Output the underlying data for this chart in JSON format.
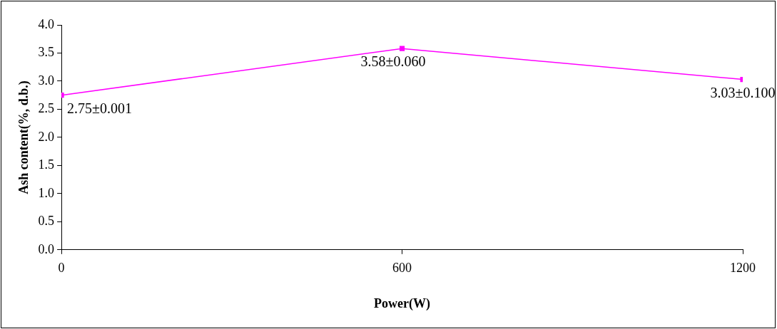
{
  "chart_data": {
    "type": "line",
    "xlabel": "Power(W)",
    "ylabel": "Ash content(%, d.b.)",
    "x": [
      0,
      600,
      1200
    ],
    "series": [
      {
        "color": "#ff00ff",
        "values": [
          2.75,
          3.58,
          3.03
        ],
        "value_labels": [
          "2.75±0.001",
          "3.58±0.060",
          "3.03±0.100"
        ]
      }
    ],
    "xlim": [
      0,
      1200
    ],
    "xticks": [
      0,
      600,
      1200
    ],
    "ylim": [
      0,
      4
    ],
    "yticks": [
      {
        "value": 0,
        "label": "0.0"
      },
      {
        "value": 0.5,
        "label": "0.5"
      },
      {
        "value": 1,
        "label": "1.0"
      },
      {
        "value": 1.5,
        "label": "1.5"
      },
      {
        "value": 2,
        "label": "2.0"
      },
      {
        "value": 2.5,
        "label": "2.5"
      },
      {
        "value": 3,
        "label": "3.0"
      },
      {
        "value": 3.5,
        "label": "3.5"
      },
      {
        "value": 4,
        "label": "4.0"
      }
    ],
    "grid": false,
    "legend": false,
    "marker": "square",
    "line_style": "solid"
  }
}
